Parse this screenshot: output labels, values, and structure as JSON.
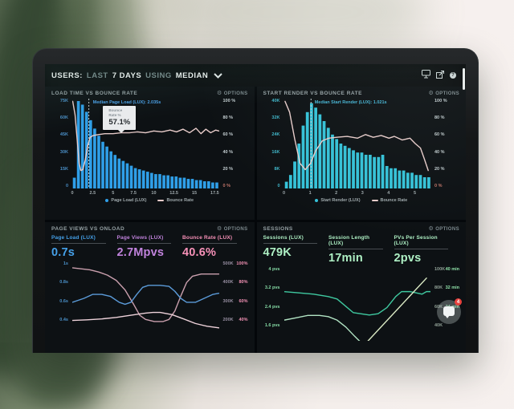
{
  "window": {
    "header": {
      "segments": [
        {
          "text": "USERS:"
        },
        {
          "text": "LAST"
        },
        {
          "text": "7 DAYS"
        },
        {
          "text": "USING"
        },
        {
          "text": "MEDIAN"
        }
      ],
      "help_glyph": "?",
      "gear_glyph": "⚙"
    },
    "chat": {
      "badge": "4"
    }
  },
  "panels": [
    {
      "title": "LOAD TIME VS BOUNCE RATE",
      "options_label": "OPTIONS"
    },
    {
      "title": "START RENDER VS BOUNCE RATE",
      "options_label": "OPTIONS"
    },
    {
      "title": "PAGE VIEWS VS ONLOAD",
      "options_label": "OPTIONS",
      "metrics": [
        {
          "label": "Page Load (LUX)",
          "value": "0.7s",
          "color": "#45a0e8"
        },
        {
          "label": "Page Views (LUX)",
          "value": "2.7Mpvs",
          "color": "#c183dd"
        },
        {
          "label": "Bounce Rate (LUX)",
          "value": "40.6%",
          "color": "#f791b8"
        }
      ]
    },
    {
      "title": "SESSIONS",
      "options_label": "OPTIONS",
      "metrics": [
        {
          "label": "Sessions (LUX)",
          "value": "479K",
          "color": "#aef0c4"
        },
        {
          "label": "Session Length (LUX)",
          "value": "17min",
          "color": "#aef0c4"
        },
        {
          "label": "PVs Per Session (LUX)",
          "value": "2pvs",
          "color": "#aef0c4"
        }
      ]
    }
  ],
  "chart_data": [
    {
      "type": "bar",
      "title": "LOAD TIME VS BOUNCE RATE",
      "x_range": [
        0,
        18
      ],
      "x_ticks": [
        0,
        2.5,
        5,
        7.5,
        10,
        12.5,
        15,
        17.5
      ],
      "left_axis": {
        "ticks": [
          "75K",
          "60K",
          "45K",
          "30K",
          "15K",
          "0"
        ],
        "max": 75,
        "color": "#4a8fc7"
      },
      "right_axis": {
        "ticks": [
          "100 %",
          "80 %",
          "60 %",
          "40 %",
          "20 %",
          "0 %"
        ],
        "color": "#c3cdd0",
        "last_color": "#c4766a"
      },
      "bars": {
        "name": "Page Load (LUX)",
        "unit": "K sessions",
        "bin_width": 0.5,
        "color": "#2f9fe8",
        "values": [
          9,
          73,
          70,
          64,
          57,
          50,
          44,
          39,
          35,
          31,
          28,
          25,
          23,
          21,
          19,
          17,
          16,
          15,
          14,
          13,
          12,
          12,
          11,
          11,
          10,
          10,
          9,
          9,
          8,
          8,
          7,
          7,
          6,
          6,
          5,
          5
        ]
      },
      "lines": [
        {
          "name": "Bounce Rate",
          "unit": "%",
          "color": "#e9cdcb",
          "range": [
            0,
            100
          ],
          "points": [
            [
              0.05,
              97
            ],
            [
              0.35,
              82
            ],
            [
              0.6,
              55
            ],
            [
              0.85,
              28
            ],
            [
              1.05,
              20
            ],
            [
              1.3,
              21
            ],
            [
              1.6,
              32
            ],
            [
              1.9,
              48
            ],
            [
              2.2,
              57
            ],
            [
              2.6,
              59
            ],
            [
              3.2,
              60
            ],
            [
              4,
              61
            ],
            [
              5,
              61
            ],
            [
              6,
              62
            ],
            [
              7,
              62
            ],
            [
              8,
              63
            ],
            [
              9,
              62
            ],
            [
              10,
              64
            ],
            [
              11,
              63
            ],
            [
              12,
              65
            ],
            [
              12.8,
              63
            ],
            [
              13.6,
              66
            ],
            [
              14.4,
              62
            ],
            [
              15.2,
              67
            ],
            [
              15.8,
              61
            ],
            [
              16.4,
              66
            ],
            [
              17,
              62
            ],
            [
              17.6,
              65
            ],
            [
              18,
              64
            ]
          ]
        }
      ],
      "median": {
        "x": 2.035,
        "label": "Median Page Load (LUX): 2.035s",
        "color": "#4aa0e8"
      },
      "tooltip": {
        "label": "Bounce Rate %",
        "value": "57.1%"
      },
      "legend": [
        {
          "swatch": "dot",
          "color": "#2f9fe8",
          "label": "Page Load (LUX)"
        },
        {
          "swatch": "dash",
          "color": "#e9cdcb",
          "label": "Bounce Rate"
        }
      ]
    },
    {
      "type": "bar",
      "title": "START RENDER VS BOUNCE RATE",
      "x_range": [
        0,
        5.6
      ],
      "x_ticks": [
        0,
        1,
        2,
        3,
        4,
        5
      ],
      "left_axis": {
        "ticks": [
          "40K",
          "32K",
          "24K",
          "16K",
          "8K",
          "0"
        ],
        "max": 40,
        "color": "#3fb6c9"
      },
      "right_axis": {
        "ticks": [
          "100 %",
          "80 %",
          "60 %",
          "40 %",
          "20 %",
          "0 %"
        ],
        "color": "#c3cdd0",
        "last_color": "#c4766a"
      },
      "bars": {
        "name": "Start Render (LUX)",
        "unit": "K sessions",
        "bin_width": 0.16,
        "color": "#35c2d8",
        "values": [
          3,
          6,
          12,
          20,
          28,
          34,
          38,
          36,
          33,
          30,
          27,
          24,
          22,
          20,
          19,
          18,
          17,
          16,
          16,
          15,
          15,
          14,
          14,
          15,
          10,
          9,
          9,
          8,
          8,
          7,
          7,
          6,
          6,
          5,
          5
        ]
      },
      "lines": [
        {
          "name": "Bounce Rate",
          "unit": "%",
          "color": "#e9cdcb",
          "range": [
            0,
            100
          ],
          "points": [
            [
              0.03,
              97
            ],
            [
              0.2,
              85
            ],
            [
              0.4,
              55
            ],
            [
              0.6,
              28
            ],
            [
              0.8,
              21
            ],
            [
              1.0,
              28
            ],
            [
              1.2,
              42
            ],
            [
              1.45,
              53
            ],
            [
              1.7,
              56
            ],
            [
              2.0,
              57
            ],
            [
              2.4,
              58
            ],
            [
              2.8,
              56
            ],
            [
              3.1,
              60
            ],
            [
              3.4,
              57
            ],
            [
              3.7,
              59
            ],
            [
              4.0,
              56
            ],
            [
              4.2,
              58
            ],
            [
              4.5,
              54
            ],
            [
              4.8,
              56
            ],
            [
              5.0,
              50
            ],
            [
              5.2,
              45
            ],
            [
              5.35,
              33
            ],
            [
              5.5,
              20
            ]
          ]
        }
      ],
      "median": {
        "x": 1.021,
        "label": "Median Start Render (LUX): 1.021s",
        "color": "#45b4d4"
      },
      "legend": [
        {
          "swatch": "dot",
          "color": "#35c2d8",
          "label": "Start Render (LUX)"
        },
        {
          "swatch": "dash",
          "color": "#e9cdcb",
          "label": "Bounce Rate"
        }
      ]
    },
    {
      "type": "line",
      "title": "PAGE VIEWS VS ONLOAD",
      "left_axis": {
        "ticks": [
          "1s",
          "0.8s",
          "0.6s",
          "0.4s"
        ],
        "color": "#4a8fc7"
      },
      "right_axis": {
        "cols": [
          [
            "500K",
            "400K",
            "300K",
            "200K"
          ],
          [
            "100%",
            "80%",
            "60%",
            "40%"
          ]
        ],
        "colors": [
          "#958da0",
          "#f291b4"
        ]
      },
      "lines": [
        {
          "name": "Bounce Rate (LUX)",
          "unit": "%",
          "color": "#c99fad",
          "range": [
            33,
            103
          ],
          "points": [
            [
              0,
              97
            ],
            [
              0.06,
              96
            ],
            [
              0.12,
              95
            ],
            [
              0.18,
              93
            ],
            [
              0.24,
              90
            ],
            [
              0.3,
              85
            ],
            [
              0.36,
              76
            ],
            [
              0.42,
              62
            ],
            [
              0.46,
              52
            ],
            [
              0.5,
              48
            ],
            [
              0.56,
              46
            ],
            [
              0.62,
              46
            ],
            [
              0.66,
              48
            ],
            [
              0.7,
              56
            ],
            [
              0.74,
              70
            ],
            [
              0.78,
              83
            ],
            [
              0.82,
              89
            ],
            [
              0.88,
              91
            ],
            [
              1,
              91
            ]
          ]
        },
        {
          "name": "Page Load (LUX)",
          "unit": "s",
          "color": "#5b9bd9",
          "range": [
            0.33,
            1.07
          ],
          "points": [
            [
              0,
              0.66
            ],
            [
              0.08,
              0.7
            ],
            [
              0.14,
              0.74
            ],
            [
              0.2,
              0.74
            ],
            [
              0.26,
              0.72
            ],
            [
              0.32,
              0.66
            ],
            [
              0.36,
              0.64
            ],
            [
              0.4,
              0.66
            ],
            [
              0.44,
              0.74
            ],
            [
              0.48,
              0.81
            ],
            [
              0.52,
              0.83
            ],
            [
              0.6,
              0.83
            ],
            [
              0.66,
              0.82
            ],
            [
              0.7,
              0.77
            ],
            [
              0.74,
              0.7
            ],
            [
              0.78,
              0.66
            ],
            [
              0.84,
              0.66
            ],
            [
              0.9,
              0.7
            ],
            [
              0.96,
              0.74
            ],
            [
              1,
              0.75
            ]
          ]
        },
        {
          "name": "Page Views (LUX)",
          "unit": "K",
          "color": "#eed2da",
          "range": [
            180,
            520
          ],
          "points": [
            [
              0,
              248
            ],
            [
              0.1,
              251
            ],
            [
              0.2,
              255
            ],
            [
              0.3,
              262
            ],
            [
              0.4,
              272
            ],
            [
              0.5,
              282
            ],
            [
              0.55,
              285
            ],
            [
              0.6,
              285
            ],
            [
              0.68,
              275
            ],
            [
              0.76,
              255
            ],
            [
              0.84,
              234
            ],
            [
              0.92,
              221
            ],
            [
              1,
              214
            ]
          ]
        }
      ]
    },
    {
      "type": "line",
      "title": "SESSIONS",
      "left_axis": {
        "ticks": [
          "4 pvs",
          "3.2 pvs",
          "2.4 pvs",
          "1.6 pvs"
        ],
        "color": "#86dca6"
      },
      "right_axis": {
        "cols": [
          [
            "100K",
            "80K",
            "60K",
            "40K"
          ],
          [
            "40 min",
            "32 min",
            "24 min",
            ""
          ]
        ],
        "colors": [
          "#90a096",
          "#8fe0a8"
        ]
      },
      "lines": [
        {
          "name": "PVs Per Session (LUX)",
          "unit": "pvs",
          "color": "#3fc9a0",
          "range": [
            1.3,
            4.3
          ],
          "points": [
            [
              0,
              3.3
            ],
            [
              0.1,
              3.25
            ],
            [
              0.2,
              3.2
            ],
            [
              0.3,
              3.1
            ],
            [
              0.36,
              3.0
            ],
            [
              0.42,
              2.7
            ],
            [
              0.47,
              2.45
            ],
            [
              0.52,
              2.4
            ],
            [
              0.58,
              2.35
            ],
            [
              0.64,
              2.4
            ],
            [
              0.7,
              2.65
            ],
            [
              0.76,
              3.1
            ],
            [
              0.8,
              3.3
            ],
            [
              0.86,
              3.3
            ],
            [
              0.9,
              3.25
            ],
            [
              0.94,
              3.2
            ],
            [
              0.97,
              3.3
            ],
            [
              1,
              3.3
            ]
          ]
        },
        {
          "name": "Session Length (LUX)",
          "unit": "min",
          "color": "#b2e4c4",
          "range": [
            12,
            44
          ],
          "points": [
            [
              0,
              21
            ],
            [
              0.08,
              22
            ],
            [
              0.16,
              23
            ],
            [
              0.24,
              23
            ],
            [
              0.3,
              22.5
            ],
            [
              0.36,
              21
            ],
            [
              0.42,
              18
            ],
            [
              0.48,
              14
            ],
            [
              0.52,
              11.5
            ]
          ]
        },
        {
          "name": "Sessions (LUX)",
          "unit": "K",
          "color": "#dcecc6",
          "range": [
            30,
            110
          ],
          "points": [
            [
              0.56,
              28
            ],
            [
              0.97,
              98
            ]
          ]
        }
      ]
    }
  ]
}
